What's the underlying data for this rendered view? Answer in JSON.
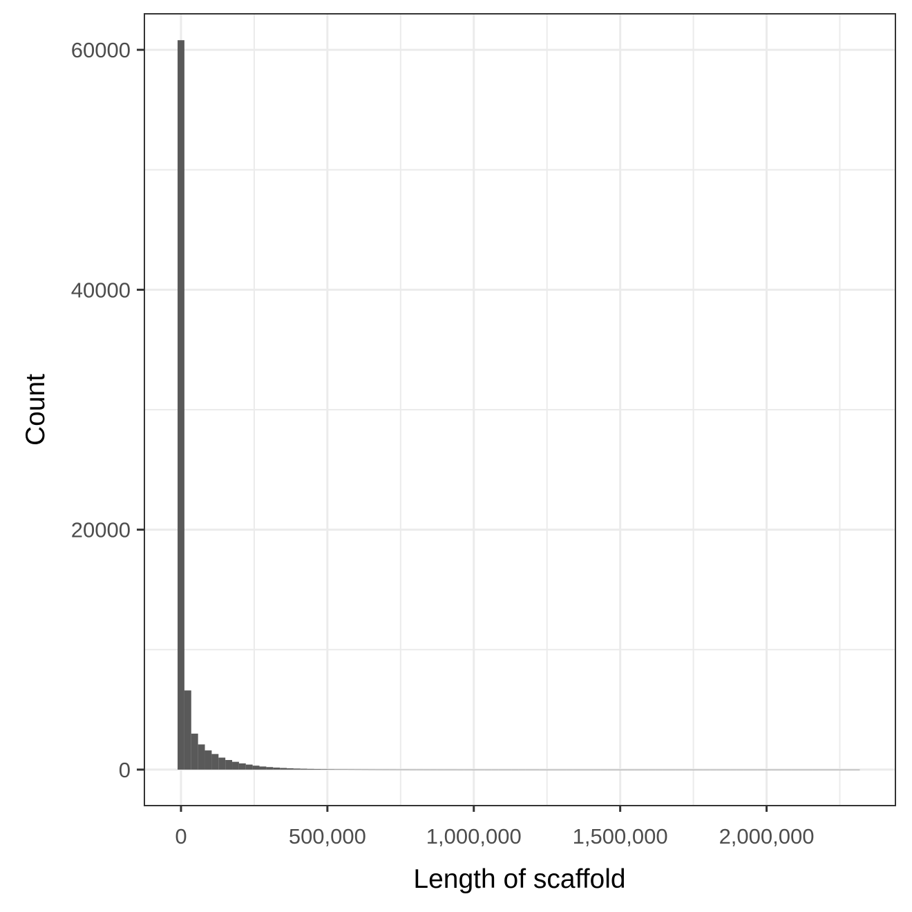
{
  "chart_data": {
    "type": "bar",
    "subtype": "histogram",
    "title": "",
    "xlabel": "Length of scaffold",
    "ylabel": "Count",
    "xlim": [
      -125000,
      2440000
    ],
    "ylim": [
      -3000,
      63000
    ],
    "x_ticks": [
      {
        "value": 0,
        "label": "0"
      },
      {
        "value": 500000,
        "label": "500,000"
      },
      {
        "value": 1000000,
        "label": "1,000,000"
      },
      {
        "value": 1500000,
        "label": "1,500,000"
      },
      {
        "value": 2000000,
        "label": "2,000,000"
      }
    ],
    "y_ticks": [
      {
        "value": 0,
        "label": "0"
      },
      {
        "value": 20000,
        "label": "20000"
      },
      {
        "value": 40000,
        "label": "40000"
      },
      {
        "value": 60000,
        "label": "60000"
      }
    ],
    "x_minor_gridlines": [
      250000,
      750000,
      1250000,
      1750000,
      2250000
    ],
    "y_minor_gridlines": [
      10000,
      30000,
      50000
    ],
    "bin_width": 23300,
    "bin_start": -11650,
    "bin_counts": [
      60800,
      6600,
      3000,
      2100,
      1600,
      1300,
      1000,
      800,
      650,
      520,
      420,
      330,
      260,
      210,
      170,
      140,
      110,
      90,
      75,
      60,
      50,
      42,
      35,
      30,
      25,
      21,
      18,
      15,
      13,
      11,
      10,
      9,
      8,
      7,
      6,
      6,
      5,
      5,
      4,
      4,
      4,
      3,
      3,
      3,
      3,
      2,
      2,
      2,
      2,
      2,
      2,
      2,
      2,
      1,
      1,
      1,
      1,
      1,
      1,
      1,
      1,
      1,
      1,
      1,
      1,
      1,
      1,
      1,
      1,
      1,
      1,
      1,
      1,
      1,
      1,
      1,
      1,
      1,
      1,
      1,
      1,
      1,
      1,
      1,
      1,
      1,
      1,
      1,
      1,
      1,
      1,
      1,
      1,
      1,
      1,
      1,
      1,
      1,
      1,
      1
    ],
    "grid": true,
    "bar_color": "#595959",
    "panel_border_color": "#333333",
    "grid_color": "#ebebeb"
  }
}
